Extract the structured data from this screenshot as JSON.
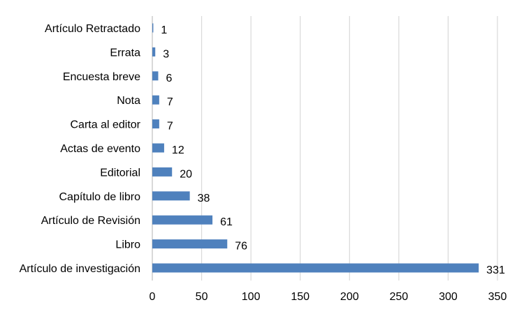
{
  "chart_data": {
    "type": "bar",
    "orientation": "horizontal",
    "categories": [
      "Artículo Retractado",
      "Errata",
      "Encuesta breve",
      "Nota",
      "Carta al editor",
      "Actas de evento",
      "Editorial",
      "Capítulo de libro",
      "Artículo de Revisión",
      "Libro",
      "Artículo de investigación"
    ],
    "values": [
      1,
      3,
      6,
      7,
      7,
      12,
      20,
      38,
      61,
      76,
      331
    ],
    "xlim": [
      0,
      350
    ],
    "xticks": [
      0,
      50,
      100,
      150,
      200,
      250,
      300,
      350
    ],
    "gridlines": "vertical",
    "legend": "none",
    "data_labels": true,
    "bar_color": "#4f81bd",
    "title": "",
    "xlabel": "",
    "ylabel": ""
  }
}
